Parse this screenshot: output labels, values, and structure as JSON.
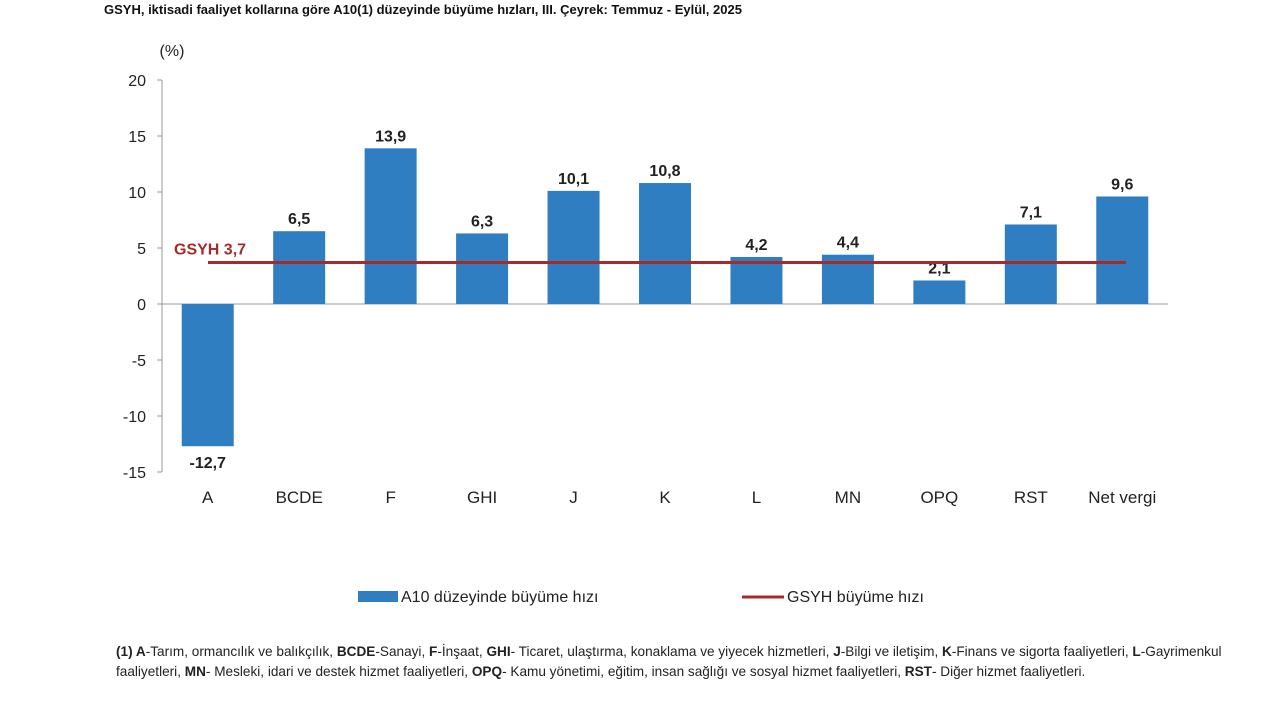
{
  "chart_data": {
    "type": "bar",
    "title": "GSYH, iktisadi faaliyet kollarına göre A10(1) düzeyinde büyüme hızları, III. Çeyrek: Temmuz - Eylül, 2025",
    "ylabel": "(%)",
    "xlabel": "",
    "categories": [
      "A",
      "BCDE",
      "F",
      "GHI",
      "J",
      "K",
      "L",
      "MN",
      "OPQ",
      "RST",
      "Net vergi"
    ],
    "series": [
      {
        "name": "A10 düzeyinde büyüme hızı",
        "values": [
          -12.7,
          6.5,
          13.9,
          6.3,
          10.1,
          10.8,
          4.2,
          4.4,
          2.1,
          7.1,
          9.6
        ],
        "labels": [
          "-12,7",
          "6,5",
          "13,9",
          "6,3",
          "10,1",
          "10,8",
          "4,2",
          "4,4",
          "2,1",
          "7,1",
          "9,6"
        ]
      }
    ],
    "reference_line": {
      "name": "GSYH büyüme hızı",
      "value": 3.7,
      "label": "GSYH 3,7"
    },
    "ylim": [
      -15,
      20
    ],
    "yticks": [
      20,
      15,
      10,
      5,
      0,
      -5,
      -10,
      -15
    ],
    "grid": false,
    "legend_position": "bottom",
    "colors": {
      "bar": "#2f7ec1",
      "line": "#a52a2a",
      "ref_label": "#a52a2a",
      "axis": "#9a9a9a"
    }
  },
  "footnote": {
    "prefix": "(1) ",
    "items": [
      {
        "code": "A",
        "text": "-Tarım, ormancılık ve balıkçılık, "
      },
      {
        "code": "BCDE",
        "text": "-Sanayi, "
      },
      {
        "code": "F",
        "text": "-İnşaat, "
      },
      {
        "code": "GHI",
        "text": "- Ticaret, ulaştırma, konaklama ve yiyecek hizmetleri, "
      },
      {
        "code": "J",
        "text": "-Bilgi ve iletişim, "
      },
      {
        "code": "K",
        "text": "-Finans ve sigorta faaliyetleri, "
      },
      {
        "code": "L",
        "text": "-Gayrimenkul faaliyetleri, "
      },
      {
        "code": "MN",
        "text": "- Mesleki, idari ve destek hizmet faaliyetleri, "
      },
      {
        "code": "OPQ",
        "text": "- Kamu yönetimi, eğitim, insan sağlığı ve sosyal hizmet faaliyetleri, "
      },
      {
        "code": "RST",
        "text": "- Diğer hizmet faaliyetleri."
      }
    ]
  }
}
